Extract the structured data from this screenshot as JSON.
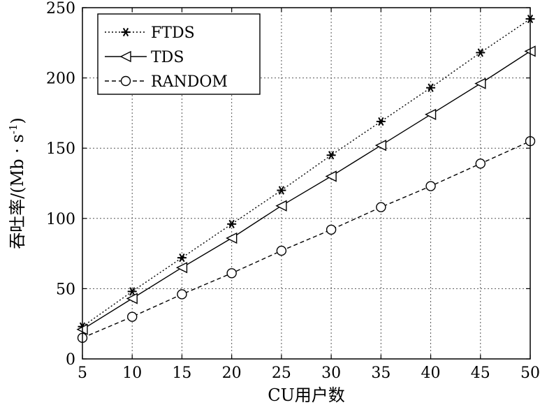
{
  "chart_data": {
    "type": "line",
    "title": "",
    "xlabel": "CU用户数",
    "ylabel": "吞吐率/(Mb · s",
    "ylabel_sup": "-1",
    "ylabel_end": ")",
    "x": [
      5,
      10,
      15,
      20,
      25,
      30,
      35,
      40,
      45,
      50
    ],
    "xlim": [
      5,
      50
    ],
    "ylim": [
      0,
      250
    ],
    "xticks": [
      5,
      10,
      15,
      20,
      25,
      30,
      35,
      40,
      45,
      50
    ],
    "yticks": [
      0,
      50,
      100,
      150,
      200,
      250
    ],
    "grid": true,
    "legend_position": "top-left",
    "series": [
      {
        "name": "FTDS",
        "marker": "asterisk",
        "line": "dotted",
        "values": [
          23,
          48,
          72,
          96,
          120,
          145,
          169,
          193,
          218,
          242
        ]
      },
      {
        "name": "TDS",
        "marker": "triangle-left",
        "line": "solid",
        "values": [
          21,
          43,
          65,
          86,
          109,
          130,
          152,
          174,
          196,
          219
        ]
      },
      {
        "name": "RANDOM",
        "marker": "circle",
        "line": "dashed",
        "values": [
          15,
          30,
          46,
          61,
          77,
          92,
          108,
          123,
          139,
          155
        ]
      }
    ]
  }
}
